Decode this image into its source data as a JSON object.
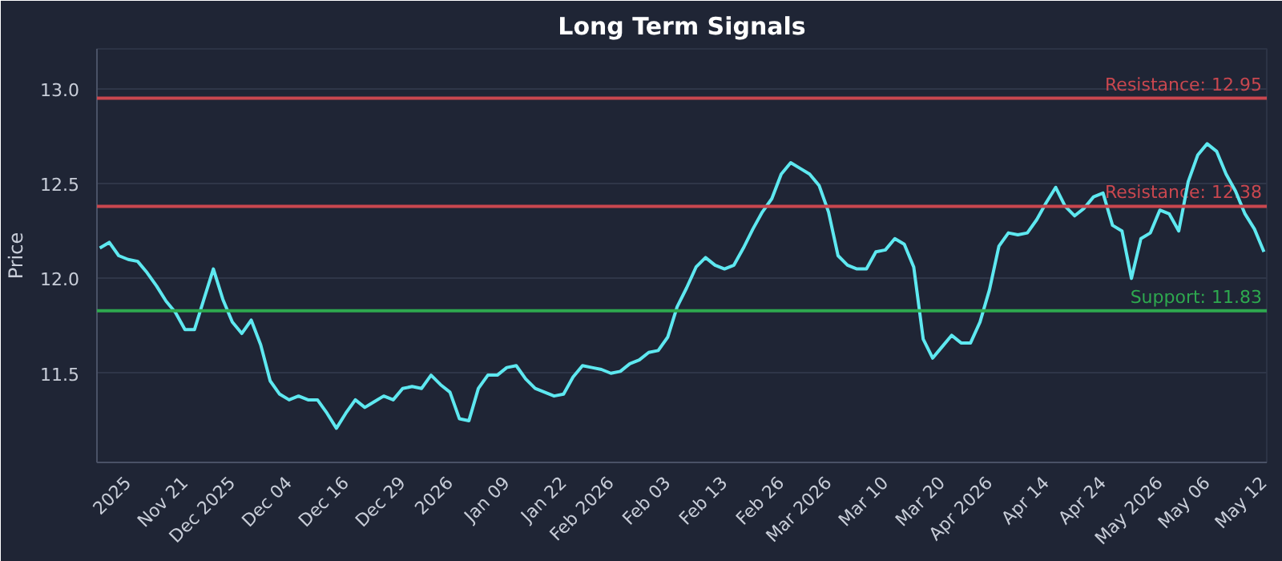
{
  "chart_data": {
    "type": "line",
    "title": "Long Term Signals",
    "ylabel": "Price",
    "categories": [
      null,
      null,
      null,
      "2025",
      null,
      null,
      null,
      null,
      null,
      "Nov 21",
      null,
      null,
      null,
      null,
      "Dec 2025",
      null,
      null,
      null,
      null,
      null,
      "Dec 04",
      null,
      null,
      null,
      null,
      null,
      "Dec 16",
      null,
      null,
      null,
      null,
      null,
      "Dec 29",
      null,
      null,
      null,
      null,
      "2026",
      null,
      null,
      null,
      null,
      null,
      "Jan 09",
      null,
      null,
      null,
      null,
      null,
      "Jan 22",
      null,
      null,
      null,
      null,
      "Feb 2026",
      null,
      null,
      null,
      null,
      null,
      "Feb 03",
      null,
      null,
      null,
      null,
      null,
      "Feb 13",
      null,
      null,
      null,
      null,
      null,
      "Feb 26",
      null,
      null,
      null,
      null,
      "Mar 2026",
      null,
      null,
      null,
      null,
      null,
      "Mar 10",
      null,
      null,
      null,
      null,
      null,
      "Mar 20",
      null,
      null,
      null,
      null,
      "Apr 2026",
      null,
      null,
      null,
      null,
      null,
      "Apr 14",
      null,
      null,
      null,
      null,
      null,
      "Apr 24",
      null,
      null,
      null,
      null,
      null,
      "May 2026",
      null,
      null,
      null,
      null,
      "May 06",
      null,
      null,
      null,
      null,
      null,
      "May 12"
    ],
    "series": [
      {
        "color": "#5ee8f0",
        "values": [
          12.16,
          12.19,
          12.12,
          12.1,
          12.09,
          12.03,
          11.96,
          11.88,
          11.82,
          11.73,
          11.73,
          11.89,
          12.05,
          11.89,
          11.77,
          11.71,
          11.78,
          11.65,
          11.46,
          11.39,
          11.36,
          11.38,
          11.36,
          11.36,
          11.29,
          11.21,
          11.29,
          11.36,
          11.32,
          11.35,
          11.38,
          11.36,
          11.42,
          11.43,
          11.42,
          11.49,
          11.44,
          11.4,
          11.26,
          11.25,
          11.42,
          11.49,
          11.49,
          11.53,
          11.54,
          11.47,
          11.42,
          11.4,
          11.38,
          11.39,
          11.48,
          11.54,
          11.53,
          11.52,
          11.5,
          11.51,
          11.55,
          11.57,
          11.61,
          11.62,
          11.69,
          11.85,
          11.95,
          12.06,
          12.11,
          12.07,
          12.05,
          12.07,
          12.16,
          12.26,
          12.35,
          12.42,
          12.55,
          12.61,
          12.58,
          12.55,
          12.49,
          12.35,
          12.12,
          12.07,
          12.05,
          12.05,
          12.14,
          12.15,
          12.21,
          12.18,
          12.06,
          11.68,
          11.58,
          11.64,
          11.7,
          11.66,
          11.66,
          11.77,
          11.94,
          12.17,
          12.24,
          12.23,
          12.24,
          12.31,
          12.4,
          12.48,
          12.38,
          12.33,
          12.37,
          12.43,
          12.45,
          12.28,
          12.25,
          12.0,
          12.21,
          12.24,
          12.36,
          12.34,
          12.25,
          12.51,
          12.65,
          12.71,
          12.67,
          12.55,
          12.46,
          12.34,
          12.26,
          12.14
        ]
      }
    ],
    "ylim": [
      11.03,
      13.21
    ],
    "yticks": [
      11.5,
      {
        "value": 12,
        "label": "12.0"
      },
      12.5,
      {
        "value": 13,
        "label": "13.0"
      }
    ],
    "grid": "y",
    "marker": "none",
    "line_style": "solid",
    "ref_lines": [
      {
        "axis": "y",
        "value": 12.95,
        "label": "Resistance: 12.95",
        "color": "#c9474f"
      },
      {
        "axis": "y",
        "value": 12.38,
        "label": "Resistance: 12.38",
        "color": "#c9474f"
      },
      {
        "axis": "y",
        "value": 11.83,
        "label": "Support: 11.83",
        "color": "#2ea84f"
      }
    ]
  }
}
